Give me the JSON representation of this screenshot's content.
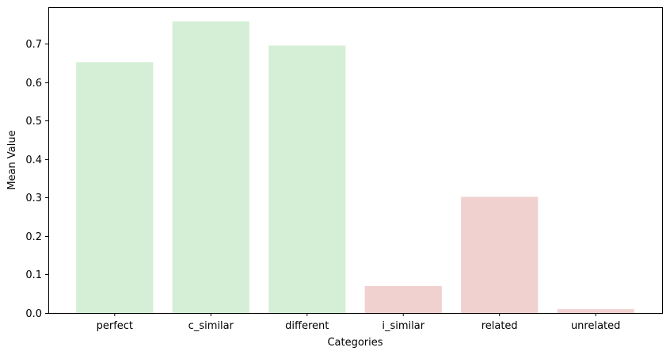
{
  "chart_data": {
    "type": "bar",
    "title": "",
    "xlabel": "Categories",
    "ylabel": "Mean Value",
    "categories": [
      "perfect",
      "c_similar",
      "different",
      "i_similar",
      "related",
      "unrelated"
    ],
    "values": [
      0.652,
      0.758,
      0.695,
      0.07,
      0.302,
      0.01
    ],
    "bar_colors": [
      "#d4efd5",
      "#d4efd5",
      "#d4efd5",
      "#f0d1d0",
      "#f0d1d0",
      "#f0d1d0"
    ],
    "ylim": [
      0,
      0.795
    ],
    "yticks": [
      0.0,
      0.1,
      0.2,
      0.3,
      0.4,
      0.5,
      0.6,
      0.7
    ],
    "ytick_labels": [
      "0.0",
      "0.1",
      "0.2",
      "0.3",
      "0.4",
      "0.5",
      "0.6",
      "0.7"
    ],
    "grid": false,
    "legend": "none"
  }
}
